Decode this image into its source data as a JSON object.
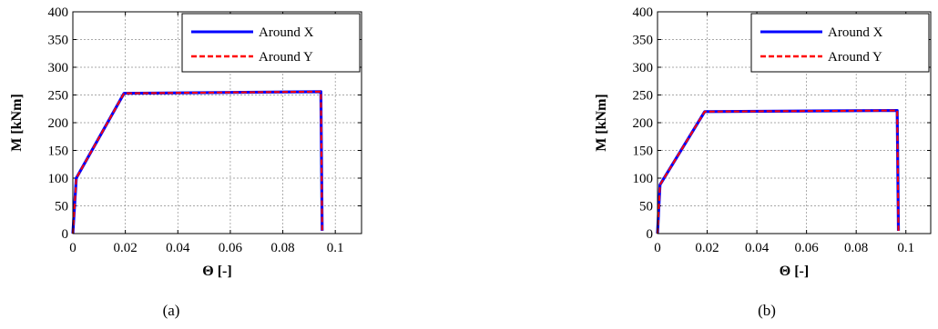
{
  "chart_data": [
    {
      "type": "line",
      "caption": "(a)",
      "xlabel": "Θ [-]",
      "ylabel": "M [kNm]",
      "xlim": [
        0,
        0.11
      ],
      "ylim": [
        0,
        400
      ],
      "xticks": [
        0,
        0.02,
        0.04,
        0.06,
        0.08,
        0.1
      ],
      "xtick_labels": [
        "0",
        "0.02",
        "0.04",
        "0.06",
        "0.08",
        "0.1"
      ],
      "yticks": [
        0,
        50,
        100,
        150,
        200,
        250,
        300,
        350,
        400
      ],
      "ytick_labels": [
        "0",
        "50",
        "100",
        "150",
        "200",
        "250",
        "300",
        "350",
        "400"
      ],
      "grid": true,
      "legend_position": "top-right",
      "series": [
        {
          "name": "Around X",
          "color": "#0000ff",
          "dash": "solid",
          "x": [
            0,
            0.0013,
            0.0195,
            0.0945,
            0.095
          ],
          "y": [
            0,
            100,
            253,
            256,
            5
          ]
        },
        {
          "name": "Around Y",
          "color": "#ff0000",
          "dash": "dashed",
          "x": [
            0,
            0.0013,
            0.0195,
            0.0945,
            0.095
          ],
          "y": [
            0,
            100,
            253,
            256,
            5
          ]
        }
      ]
    },
    {
      "type": "line",
      "caption": "(b)",
      "xlabel": "Θ [-]",
      "ylabel": "M [kNm]",
      "xlim": [
        0,
        0.11
      ],
      "ylim": [
        0,
        400
      ],
      "xticks": [
        0,
        0.02,
        0.04,
        0.06,
        0.08,
        0.1
      ],
      "xtick_labels": [
        "0",
        "0.02",
        "0.04",
        "0.06",
        "0.08",
        "0.1"
      ],
      "yticks": [
        0,
        50,
        100,
        150,
        200,
        250,
        300,
        350,
        400
      ],
      "ytick_labels": [
        "0",
        "50",
        "100",
        "150",
        "200",
        "250",
        "300",
        "350",
        "400"
      ],
      "grid": true,
      "legend_position": "top-right",
      "series": [
        {
          "name": "Around X",
          "color": "#0000ff",
          "dash": "solid",
          "x": [
            0,
            0.001,
            0.019,
            0.0965,
            0.097
          ],
          "y": [
            0,
            88,
            220,
            222,
            5
          ]
        },
        {
          "name": "Around Y",
          "color": "#ff0000",
          "dash": "dashed",
          "x": [
            0,
            0.001,
            0.019,
            0.0965,
            0.097
          ],
          "y": [
            0,
            88,
            220,
            222,
            5
          ]
        }
      ]
    }
  ]
}
